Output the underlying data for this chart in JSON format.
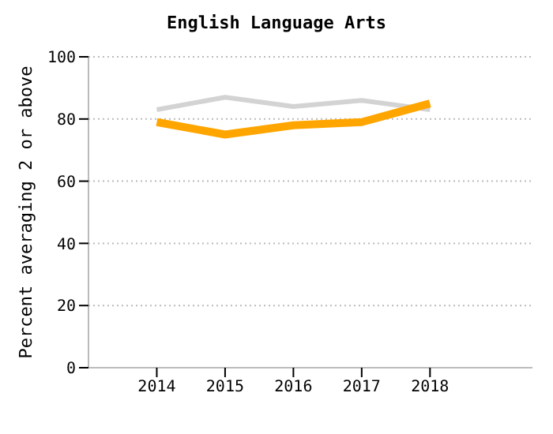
{
  "chart_data": {
    "type": "line",
    "title": "English Language Arts",
    "ylabel": "Percent averaging 2 or above",
    "x": [
      2014,
      2015,
      2016,
      2017,
      2018
    ],
    "series": [
      {
        "color": "#d3d3d3",
        "values": [
          83,
          87,
          84,
          86,
          83
        ]
      },
      {
        "color": "#ffa500",
        "values": [
          79,
          75,
          78,
          79,
          85
        ]
      }
    ],
    "xlim": [
      2013,
      2019.5
    ],
    "xticks": [
      2014,
      2015,
      2016,
      2017,
      2018
    ],
    "ylim": [
      0,
      100
    ],
    "yticks": [
      0,
      20,
      40,
      60,
      80,
      100
    ],
    "grid": "y",
    "line_style": "solid",
    "marker": "none"
  }
}
